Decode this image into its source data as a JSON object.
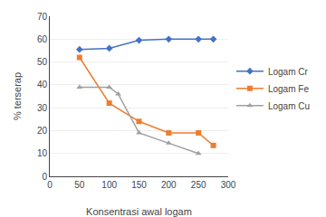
{
  "chart_data": {
    "type": "line",
    "xlabel": "Konsentrasi awal logam",
    "ylabel": "% terserap",
    "xlim": [
      0,
      300
    ],
    "ylim": [
      0,
      70
    ],
    "xticks": [
      0,
      50,
      100,
      150,
      200,
      250,
      300
    ],
    "yticks": [
      0,
      10,
      20,
      30,
      40,
      50,
      60,
      70
    ],
    "grid": "y",
    "legend": "right",
    "series": [
      {
        "name": "Logam Cr",
        "color": "#4472C4",
        "marker": "diamond",
        "x": [
          50,
          100,
          150,
          200,
          250,
          275
        ],
        "values": [
          55.5,
          56,
          59.5,
          60,
          60,
          60
        ]
      },
      {
        "name": "Logam Fe",
        "color": "#ED7D31",
        "marker": "square",
        "x": [
          50,
          100,
          150,
          200,
          250,
          275
        ],
        "values": [
          52,
          32,
          24,
          19,
          19,
          13.5
        ]
      },
      {
        "name": "Logam Cu",
        "color": "#A0A0A0",
        "marker": "triangle-up",
        "x": [
          50,
          100,
          115,
          150,
          200,
          250
        ],
        "values": [
          39,
          39,
          36,
          19,
          14.5,
          10
        ]
      }
    ]
  }
}
